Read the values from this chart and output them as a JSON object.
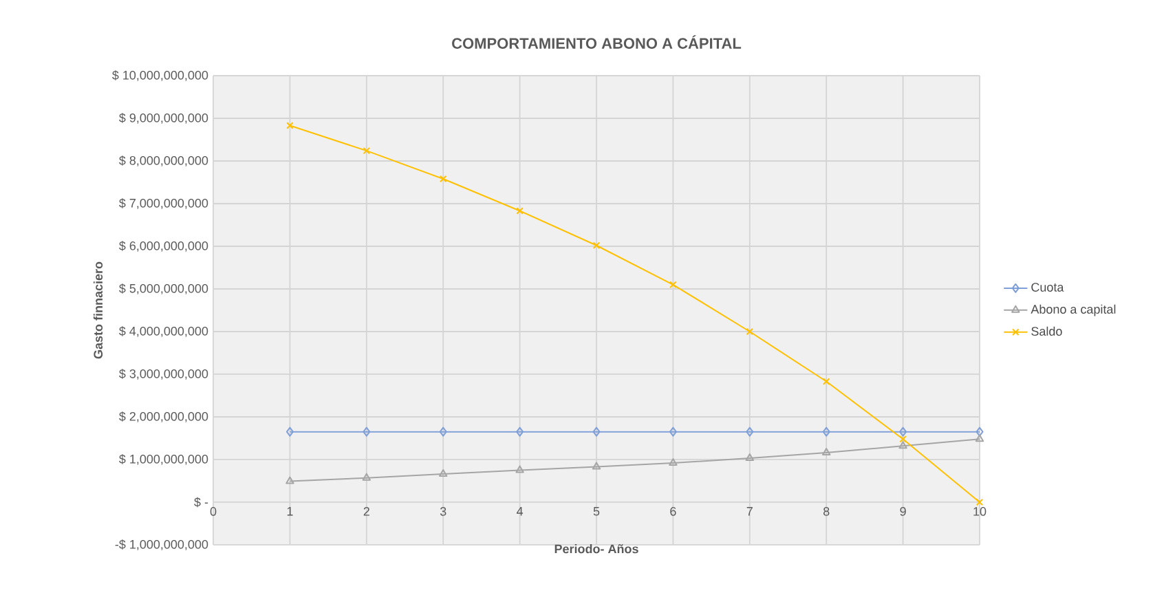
{
  "chart_data": {
    "type": "line",
    "title": "COMPORTAMIENTO ABONO A CÁPITAL",
    "xlabel": "Periodo- Años",
    "ylabel": "Gasto finnaciero",
    "x": [
      1,
      2,
      3,
      4,
      5,
      6,
      7,
      8,
      9,
      10
    ],
    "series": [
      {
        "name": "Cuota",
        "color": "#7f9fd8",
        "marker": "diamond",
        "values": [
          1650000000,
          1650000000,
          1650000000,
          1650000000,
          1650000000,
          1650000000,
          1650000000,
          1650000000,
          1650000000,
          1650000000
        ]
      },
      {
        "name": "Abono a capital",
        "color": "#a5a5a5",
        "marker": "triangle",
        "values": [
          490000000,
          570000000,
          660000000,
          750000000,
          830000000,
          920000000,
          1030000000,
          1160000000,
          1320000000,
          1480000000
        ]
      },
      {
        "name": "Saldo",
        "color": "#ffc000",
        "marker": "cross",
        "values": [
          8830000000,
          8240000000,
          7580000000,
          6830000000,
          6020000000,
          5100000000,
          4000000000,
          2830000000,
          1480000000,
          0
        ]
      }
    ],
    "xlim": [
      0,
      10
    ],
    "xticks": [
      0,
      1,
      2,
      3,
      4,
      5,
      6,
      7,
      8,
      9,
      10
    ],
    "ylim": [
      -1000000000,
      10000000000
    ],
    "yticks": [
      {
        "value": -1000000000,
        "label": "-$ 1,000,000,000"
      },
      {
        "value": 0,
        "label": "$ -"
      },
      {
        "value": 1000000000,
        "label": "$ 1,000,000,000"
      },
      {
        "value": 2000000000,
        "label": "$ 2,000,000,000"
      },
      {
        "value": 3000000000,
        "label": "$ 3,000,000,000"
      },
      {
        "value": 4000000000,
        "label": "$ 4,000,000,000"
      },
      {
        "value": 5000000000,
        "label": "$ 5,000,000,000"
      },
      {
        "value": 6000000000,
        "label": "$ 6,000,000,000"
      },
      {
        "value": 7000000000,
        "label": "$ 7,000,000,000"
      },
      {
        "value": 8000000000,
        "label": "$ 8,000,000,000"
      },
      {
        "value": 9000000000,
        "label": "$ 9,000,000,000"
      },
      {
        "value": 10000000000,
        "label": "$ 10,000,000,000"
      }
    ],
    "grid": true,
    "legend": "right",
    "line_style": "solid"
  }
}
